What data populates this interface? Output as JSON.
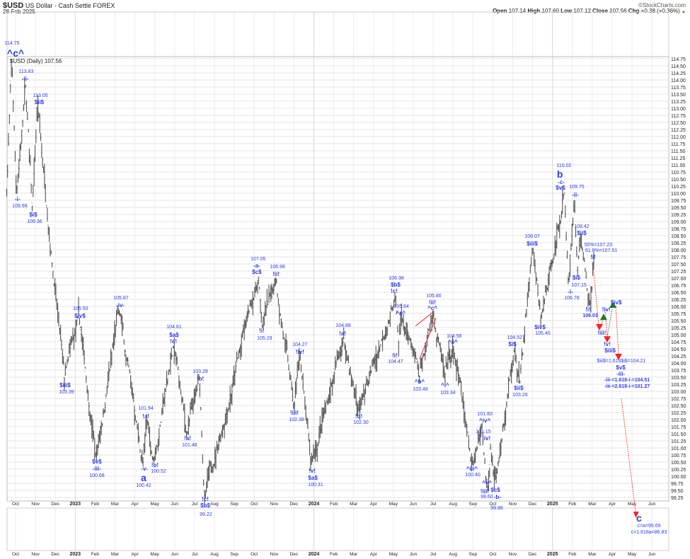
{
  "header": {
    "symbol": "$USD",
    "name": "US Dollar - Cash Settle FOREX",
    "date": "28-Feb-2025",
    "copyright": "©StockCharts.com",
    "open_label": "Open",
    "open": "107.14",
    "high_label": "High",
    "high": "107.60",
    "low_label": "Low",
    "low": "107.12",
    "close_label": "Close",
    "close": "107.56",
    "chg_label": "Chg",
    "chg": "+0.38 (+0.36%)",
    "chg_arrow": "▲"
  },
  "legend": "$USD (Daily) 107.56",
  "colors": {
    "bars": "#555555",
    "labels": "#2b3bf0",
    "down": "#ff2020",
    "up": "#1f7a1f",
    "grid": "#e6e6e6"
  },
  "chart_data": {
    "type": "ohlc",
    "title": "$USD US Dollar - Cash Settle FOREX",
    "ylim": [
      99.25,
      114.75
    ],
    "ytick_step": 0.25,
    "x_months": [
      "Oct",
      "Nov",
      "Dec",
      "2023",
      "Feb",
      "Mar",
      "Apr",
      "May",
      "Jun",
      "Jul",
      "Aug",
      "Sep",
      "Oct",
      "Nov",
      "Dec",
      "2024",
      "Feb",
      "Mar",
      "Apr",
      "May",
      "Jun",
      "Jul",
      "Aug",
      "Sep",
      "Oct",
      "Nov",
      "Dec",
      "2025",
      "Feb",
      "Mar",
      "Apr",
      "May",
      "Jun"
    ],
    "pivots": [
      [
        -0.45,
        110.0
      ],
      [
        -0.2,
        114.75
      ],
      [
        0.05,
        109.98
      ],
      [
        0.5,
        113.83
      ],
      [
        0.85,
        109.36
      ],
      [
        1.1,
        113.05
      ],
      [
        2.45,
        103.39
      ],
      [
        3.2,
        105.5
      ],
      [
        4.05,
        100.68
      ],
      [
        5.2,
        105.87
      ],
      [
        6.4,
        100.42
      ],
      [
        6.6,
        101.94
      ],
      [
        6.95,
        100.52
      ],
      [
        7.95,
        104.61
      ],
      [
        8.6,
        101.48
      ],
      [
        9.25,
        103.28
      ],
      [
        9.5,
        99.22
      ],
      [
        12.2,
        107.05
      ],
      [
        12.4,
        105.29
      ],
      [
        13.1,
        106.98
      ],
      [
        14.0,
        102.38
      ],
      [
        14.3,
        104.27
      ],
      [
        14.85,
        100.31
      ],
      [
        16.5,
        104.88
      ],
      [
        17.25,
        102.3
      ],
      [
        19.1,
        106.38
      ],
      [
        19.25,
        104.47
      ],
      [
        19.4,
        105.64
      ],
      [
        20.3,
        103.48
      ],
      [
        21.0,
        105.8
      ],
      [
        21.6,
        103.34
      ],
      [
        22.0,
        104.56
      ],
      [
        22.95,
        100.4
      ],
      [
        23.45,
        101.83
      ],
      [
        23.7,
        99.6
      ],
      [
        23.9,
        101.15
      ],
      [
        24.15,
        99.86
      ],
      [
        25.1,
        104.52
      ],
      [
        25.35,
        103.28
      ],
      [
        26.0,
        108.07
      ],
      [
        26.4,
        105.4
      ],
      [
        27.6,
        110.02
      ],
      [
        27.8,
        106.78
      ],
      [
        28.1,
        109.75
      ],
      [
        28.25,
        107.15
      ],
      [
        28.4,
        108.42
      ],
      [
        28.9,
        106.03
      ],
      [
        29.05,
        107.56
      ]
    ],
    "last_close": 107.56,
    "annotations": [
      {
        "text": "114.75",
        "m": -0.18,
        "p": 115.27,
        "s": "num"
      },
      {
        "text": "^c^",
        "m": 0.0,
        "p": 114.95,
        "s": "big"
      },
      {
        "text": "113.83",
        "m": 0.53,
        "p": 114.28,
        "s": "num"
      },
      {
        "text": "-ii-",
        "m": 0.48,
        "p": 114.02,
        "s": "wave"
      },
      {
        "text": "113.05",
        "m": 1.25,
        "p": 113.42,
        "s": "num"
      },
      {
        "text": "$ii$",
        "m": 1.19,
        "p": 113.2,
        "s": "wave"
      },
      {
        "text": "-i-",
        "m": 0.1,
        "p": 109.77,
        "s": "wave"
      },
      {
        "text": "109.98",
        "m": 0.21,
        "p": 109.52,
        "s": "num"
      },
      {
        "text": "$i$",
        "m": 0.89,
        "p": 109.22,
        "s": "wave"
      },
      {
        "text": "109.36",
        "m": 0.96,
        "p": 108.97,
        "s": "num"
      },
      {
        "text": "105.50",
        "m": 3.27,
        "p": 105.9,
        "s": "num"
      },
      {
        "text": "$iv$",
        "m": 3.24,
        "p": 105.65,
        "s": "wave"
      },
      {
        "text": "$iii$",
        "m": 2.49,
        "p": 103.2,
        "s": "wave"
      },
      {
        "text": "103.39",
        "m": 2.56,
        "p": 102.95,
        "s": "num"
      },
      {
        "text": "105.87",
        "m": 5.3,
        "p": 106.28,
        "s": "num"
      },
      {
        "text": "-iv-",
        "m": 5.27,
        "p": 106.02,
        "s": "wave"
      },
      {
        "text": "$v$",
        "m": 4.09,
        "p": 100.5,
        "s": "wave"
      },
      {
        "text": "-iii-",
        "m": 4.09,
        "p": 100.25,
        "s": "wave"
      },
      {
        "text": "100.68",
        "m": 4.09,
        "p": 100.0,
        "s": "num"
      },
      {
        "text": "101.94",
        "m": 6.55,
        "p": 102.37,
        "s": "num"
      },
      {
        "text": "!a!",
        "m": 6.55,
        "p": 102.1,
        "s": "wave"
      },
      {
        "text": "-v-",
        "m": 6.48,
        "p": 100.25,
        "s": "wave"
      },
      {
        "text": "a",
        "m": 6.44,
        "p": 99.98,
        "s": "big"
      },
      {
        "text": "100.42",
        "m": 6.44,
        "p": 99.68,
        "s": "num"
      },
      {
        "text": "!b!",
        "m": 7.01,
        "p": 100.37,
        "s": "wave"
      },
      {
        "text": "100.52",
        "m": 7.19,
        "p": 100.15,
        "s": "num"
      },
      {
        "text": "104.61",
        "m": 7.97,
        "p": 105.25,
        "s": "num"
      },
      {
        "text": "$a$",
        "m": 7.97,
        "p": 104.97,
        "s": "wave"
      },
      {
        "text": "!c!",
        "m": 7.94,
        "p": 104.75,
        "s": "wave"
      },
      {
        "text": "!a!",
        "m": 8.65,
        "p": 101.32,
        "s": "wave"
      },
      {
        "text": "101.48",
        "m": 8.75,
        "p": 101.07,
        "s": "num"
      },
      {
        "text": "103.28",
        "m": 9.29,
        "p": 103.67,
        "s": "num"
      },
      {
        "text": "!b!",
        "m": 9.29,
        "p": 103.42,
        "s": "wave"
      },
      {
        "text": "!c!",
        "m": 9.54,
        "p": 99.17,
        "s": "wave"
      },
      {
        "text": "$b$",
        "m": 9.54,
        "p": 98.95,
        "s": "wave"
      },
      {
        "text": "99.22",
        "m": 9.57,
        "p": 98.62,
        "s": "num"
      },
      {
        "text": "107.05",
        "m": 12.2,
        "p": 107.65,
        "s": "num"
      },
      {
        "text": "-a-",
        "m": 12.13,
        "p": 107.42,
        "s": "wave"
      },
      {
        "text": "$c$",
        "m": 12.13,
        "p": 107.2,
        "s": "wave"
      },
      {
        "text": "106.98",
        "m": 13.17,
        "p": 107.37,
        "s": "num"
      },
      {
        "text": "!ii!",
        "m": 13.1,
        "p": 107.12,
        "s": "wave"
      },
      {
        "text": "!i!",
        "m": 12.38,
        "p": 105.12,
        "s": "wave"
      },
      {
        "text": "105.29",
        "m": 12.52,
        "p": 104.85,
        "s": "num"
      },
      {
        "text": "104.27",
        "m": 14.3,
        "p": 104.62,
        "s": "num"
      },
      {
        "text": "!iv!",
        "m": 14.3,
        "p": 104.37,
        "s": "wave"
      },
      {
        "text": "!iii!",
        "m": 14.02,
        "p": 102.22,
        "s": "wave"
      },
      {
        "text": "102.38",
        "m": 14.13,
        "p": 101.97,
        "s": "num"
      },
      {
        "text": "!v!",
        "m": 14.91,
        "p": 100.17,
        "s": "wave"
      },
      {
        "text": "$a$",
        "m": 14.95,
        "p": 99.92,
        "s": "wave"
      },
      {
        "text": "100.31",
        "m": 15.09,
        "p": 99.68,
        "s": "num"
      },
      {
        "text": "104.88",
        "m": 16.48,
        "p": 105.3,
        "s": "num"
      },
      {
        "text": "!a!",
        "m": 16.44,
        "p": 105.02,
        "s": "wave"
      },
      {
        "text": "!b!",
        "m": 17.26,
        "p": 102.1,
        "s": "wave"
      },
      {
        "text": "102.30",
        "m": 17.37,
        "p": 101.87,
        "s": "num"
      },
      {
        "text": "106.38",
        "m": 19.15,
        "p": 106.97,
        "s": "num"
      },
      {
        "text": "$b$",
        "m": 19.11,
        "p": 106.75,
        "s": "wave"
      },
      {
        "text": "!c!",
        "m": 19.04,
        "p": 106.52,
        "s": "wave"
      },
      {
        "text": "105.64",
        "m": 19.4,
        "p": 105.97,
        "s": "num"
      },
      {
        "text": "^a^",
        "m": 19.36,
        "p": 105.75,
        "s": "wave"
      },
      {
        "text": "!i!",
        "m": 19.07,
        "p": 104.25,
        "s": "wave"
      },
      {
        "text": "104.47",
        "m": 19.11,
        "p": 104.02,
        "s": "num"
      },
      {
        "text": "^b^",
        "m": 20.32,
        "p": 103.32,
        "s": "wave"
      },
      {
        "text": "103.48",
        "m": 20.36,
        "p": 103.05,
        "s": "num"
      },
      {
        "text": "105.80",
        "m": 21.03,
        "p": 106.35,
        "s": "num"
      },
      {
        "text": "!ii!",
        "m": 20.96,
        "p": 106.12,
        "s": "wave"
      },
      {
        "text": "^c^",
        "m": 20.96,
        "p": 105.92,
        "s": "wave"
      },
      {
        "text": "104.56",
        "m": 22.06,
        "p": 104.92,
        "s": "num"
      },
      {
        "text": "^ii^",
        "m": 21.99,
        "p": 104.72,
        "s": "wave"
      },
      {
        "text": "^i^",
        "m": 21.6,
        "p": 103.2,
        "s": "wave"
      },
      {
        "text": "103.34",
        "m": 21.74,
        "p": 102.92,
        "s": "num"
      },
      {
        "text": "101.83",
        "m": 23.6,
        "p": 102.17,
        "s": "num"
      },
      {
        "text": "^iv^",
        "m": 23.6,
        "p": 101.95,
        "s": "wave"
      },
      {
        "text": "101.15",
        "m": 23.52,
        "p": 101.55,
        "s": "num"
      },
      {
        "text": "!iv!",
        "m": 23.67,
        "p": 101.32,
        "s": "wave"
      },
      {
        "text": "^iii^",
        "m": 22.95,
        "p": 100.25,
        "s": "wave"
      },
      {
        "text": "100.40",
        "m": 22.99,
        "p": 100.02,
        "s": "num"
      },
      {
        "text": "^v^",
        "m": 23.7,
        "p": 99.75,
        "s": "wave"
      },
      {
        "text": "!iii!",
        "m": 23.59,
        "p": 99.45,
        "s": "wave"
      },
      {
        "text": "99.60",
        "m": 23.7,
        "p": 99.25,
        "s": "num"
      },
      {
        "text": "$c$",
        "m": 24.13,
        "p": 99.5,
        "s": "wave"
      },
      {
        "text": "-b-",
        "m": 24.13,
        "p": 99.25,
        "s": "wave"
      },
      {
        "text": "99.86",
        "m": 24.2,
        "p": 98.85,
        "s": "num"
      },
      {
        "text": "110.02",
        "m": 27.58,
        "p": 110.95,
        "s": "num"
      },
      {
        "text": "b",
        "m": 27.37,
        "p": 110.67,
        "s": "big"
      },
      {
        "text": "-c-",
        "m": 27.44,
        "p": 110.4,
        "s": "wave"
      },
      {
        "text": "$v$",
        "m": 27.4,
        "p": 110.17,
        "s": "wave"
      },
      {
        "text": "109.75",
        "m": 28.22,
        "p": 110.2,
        "s": "num"
      },
      {
        "text": "-ii-",
        "m": 28.15,
        "p": 109.92,
        "s": "wave"
      },
      {
        "text": "108.42",
        "m": 28.47,
        "p": 108.8,
        "s": "num"
      },
      {
        "text": "$ii$",
        "m": 28.47,
        "p": 108.57,
        "s": "wave"
      },
      {
        "text": "108.07",
        "m": 25.98,
        "p": 108.45,
        "s": "num"
      },
      {
        "text": "$iii$",
        "m": 25.98,
        "p": 108.2,
        "s": "wave"
      },
      {
        "text": "$i$",
        "m": 28.2,
        "p": 107.0,
        "s": "wave"
      },
      {
        "text": "107.15",
        "m": 28.33,
        "p": 106.72,
        "s": "num"
      },
      {
        "text": "-i-",
        "m": 27.9,
        "p": 106.57,
        "s": "wave"
      },
      {
        "text": "106.78",
        "m": 27.97,
        "p": 106.32,
        "s": "num"
      },
      {
        "text": "$iv$",
        "m": 26.37,
        "p": 105.25,
        "s": "wave"
      },
      {
        "text": "105.40",
        "m": 26.51,
        "p": 105.02,
        "s": "num"
      },
      {
        "text": "104.52",
        "m": 25.1,
        "p": 104.87,
        "s": "num"
      },
      {
        "text": "$i$",
        "m": 24.98,
        "p": 104.65,
        "s": "wave"
      },
      {
        "text": "$ii$",
        "m": 25.3,
        "p": 103.1,
        "s": "wave"
      },
      {
        "text": "103.28",
        "m": 25.37,
        "p": 102.85,
        "s": "num"
      },
      {
        "text": "50%=107.23",
        "m": 29.3,
        "p": 108.15,
        "s": "num"
      },
      {
        "text": "61.8%=107.51",
        "m": 29.45,
        "p": 107.95,
        "s": "num"
      },
      {
        "text": "!i!",
        "m": 29.04,
        "p": 107.72,
        "s": "wave"
      },
      {
        "text": "!i!",
        "m": 28.79,
        "p": 105.87,
        "s": "wave"
      },
      {
        "text": "106.03",
        "m": 28.9,
        "p": 105.65,
        "s": "proj"
      },
      {
        "text": "!iv!",
        "m": 29.7,
        "p": 105.87,
        "s": "wave"
      },
      {
        "text": "$iv$",
        "m": 30.2,
        "p": 106.12,
        "s": "wave"
      },
      {
        "text": "!iii!",
        "m": 29.48,
        "p": 105.05,
        "s": "wave"
      },
      {
        "text": "!v!",
        "m": 29.75,
        "p": 104.65,
        "s": "wave"
      },
      {
        "text": "$iii$",
        "m": 29.9,
        "p": 104.42,
        "s": "wave"
      },
      {
        "text": "$iii$=1.618$i$=104.21",
        "m": 30.3,
        "p": 104.05,
        "s": "wrap"
      },
      {
        "text": "$v$",
        "m": 30.43,
        "p": 103.95,
        "s": "wave"
      },
      {
        "text": "-iii-",
        "m": 30.43,
        "p": 103.72,
        "s": "wave"
      },
      {
        "text": "-iii-=1.618-i-=104.51",
        "m": 30.75,
        "p": 103.45,
        "s": "proj"
      },
      {
        "text": "-iii-=2.618-i-=101.27",
        "m": 30.75,
        "p": 103.22,
        "s": "proj"
      },
      {
        "text": "c",
        "m": 31.35,
        "p": 98.52,
        "s": "big"
      },
      {
        "text": "c=a=95.69",
        "m": 31.85,
        "p": 98.3,
        "s": "num"
      },
      {
        "text": "c=1.618a=86.83",
        "m": 31.85,
        "p": 98.1,
        "s": "num"
      }
    ],
    "triangles": [
      {
        "m": 29.36,
        "p": 105.25,
        "dir": "down"
      },
      {
        "m": 29.75,
        "p": 104.82,
        "dir": "down"
      },
      {
        "m": 30.32,
        "p": 104.2,
        "dir": "down"
      },
      {
        "m": 29.57,
        "p": 105.62,
        "dir": "up"
      },
      {
        "m": 30.04,
        "p": 106.05,
        "dir": "up"
      }
    ],
    "projection_lines": [
      {
        "from": [
          29.04,
          107.45
        ],
        "to": [
          29.32,
          105.37
        ],
        "kind": "down"
      },
      {
        "from": [
          29.47,
          105.37
        ],
        "to": [
          29.54,
          105.57
        ],
        "kind": "up"
      },
      {
        "from": [
          29.64,
          105.87
        ],
        "to": [
          29.75,
          104.95
        ],
        "kind": "down"
      },
      {
        "from": [
          29.75,
          104.92
        ],
        "to": [
          30.0,
          105.9
        ],
        "kind": "up"
      },
      {
        "from": [
          30.18,
          106.02
        ],
        "to": [
          30.32,
          104.32
        ],
        "kind": "down"
      },
      {
        "from": [
          30.46,
          102.75
        ],
        "to": [
          31.2,
          98.65
        ],
        "kind": "down"
      }
    ],
    "trend_lines": [
      {
        "from": [
          20.1,
          105.3
        ],
        "to": [
          21.03,
          105.82
        ]
      },
      {
        "from": [
          20.32,
          104.15
        ],
        "to": [
          21.14,
          105.6
        ]
      }
    ]
  }
}
